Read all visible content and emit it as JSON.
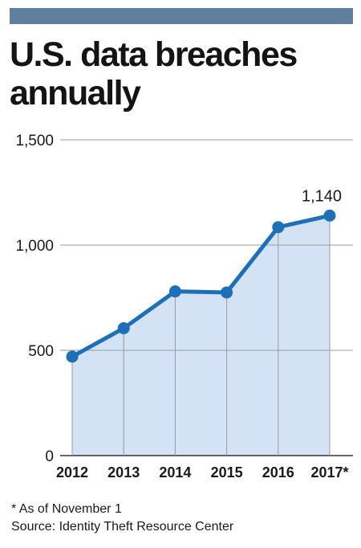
{
  "header": {
    "title_line1": "U.S. data breaches",
    "title_line2": "annually",
    "bar_color": "#5f7f9c"
  },
  "chart_data": {
    "type": "area",
    "categories": [
      "2012",
      "2013",
      "2014",
      "2015",
      "2016",
      "2017*"
    ],
    "series": [
      {
        "values": [
          470,
          605,
          780,
          775,
          1085,
          1140
        ]
      }
    ],
    "ylim": [
      0,
      1500
    ],
    "yticks": [
      0,
      500,
      1000,
      1500
    ],
    "ytick_labels": [
      "0",
      "500",
      "1,000",
      "1,500"
    ],
    "data_labels": [
      {
        "index": 5,
        "text": "1,140"
      }
    ],
    "grid": true,
    "colors": {
      "line": "#1d70b8",
      "fill": "#d3e2f4",
      "grid": "#9a9a9a"
    }
  },
  "footnotes": {
    "note": "* As of November 1",
    "source": "Source: Identity Theft Resource Center"
  }
}
